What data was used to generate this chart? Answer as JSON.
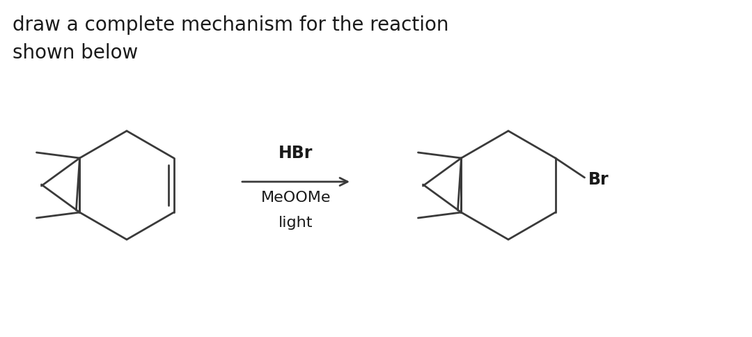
{
  "title_line1": "draw a complete mechanism for the reaction",
  "title_line2": "shown below",
  "title_fontsize": 20,
  "title_color": "#1a1a1a",
  "reagent_above": "HBr",
  "reagent_below1": "MeOOMe",
  "reagent_below2": "light",
  "product_label": "Br",
  "background_color": "#ffffff",
  "line_color": "#3a3a3a",
  "line_width": 2.0
}
